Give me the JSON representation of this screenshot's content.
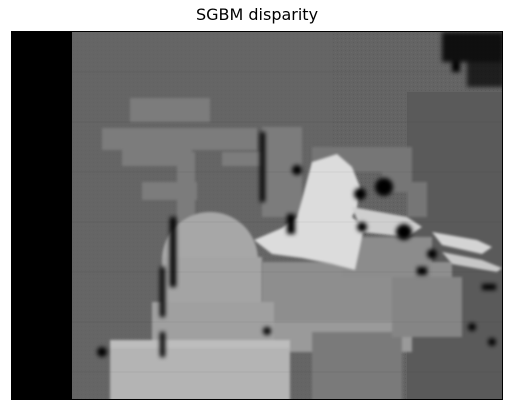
{
  "figure": {
    "title": "SGBM disparity",
    "colormap": "gray",
    "axes_visible": false
  },
  "colors": {
    "background": "#636363",
    "invalid": "#000000",
    "mid_gray": "#8a8a8a",
    "light_gray": "#b5b5b5",
    "near_white": "#e0e0e0"
  }
}
